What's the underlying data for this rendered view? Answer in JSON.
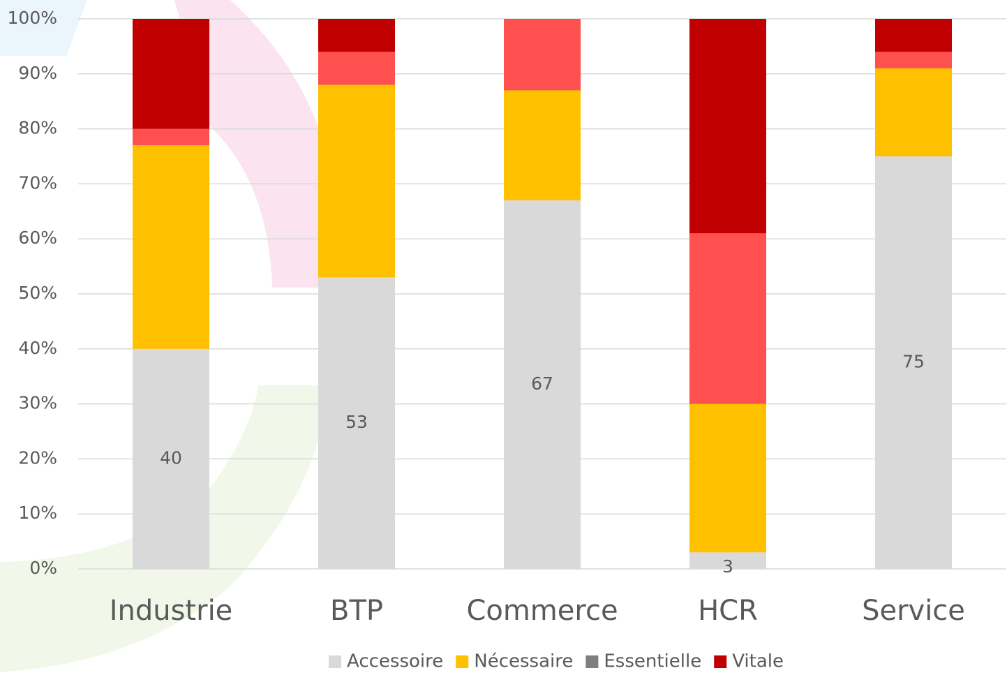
{
  "chart_data": {
    "type": "stacked_bar",
    "categories": [
      "Industrie",
      "BTP",
      "Commerce",
      "HCR",
      "Service"
    ],
    "series": [
      {
        "name": "Accessoire",
        "color": "#d9d9d9",
        "legend_color": "#d9d9d9",
        "values": [
          40,
          53,
          67,
          3,
          75
        ],
        "data_labels": true
      },
      {
        "name": "Nécessaire",
        "color": "#ffc000",
        "legend_color": "#ffc000",
        "values": [
          37,
          35,
          20,
          27,
          16
        ]
      },
      {
        "name": "Essentielle",
        "color": "#ff5050",
        "legend_color": "#7f7f7f",
        "values": [
          3,
          6,
          13,
          31,
          3
        ]
      },
      {
        "name": "Vitale",
        "color": "#c00000",
        "legend_color": "#c00000",
        "values": [
          20,
          6,
          0,
          39,
          6
        ]
      }
    ],
    "ylim": [
      0,
      100
    ],
    "yticks": [
      {
        "value": 0,
        "label": "0%"
      },
      {
        "value": 10,
        "label": "10%"
      },
      {
        "value": 20,
        "label": "20%"
      },
      {
        "value": 30,
        "label": "30%"
      },
      {
        "value": 40,
        "label": "40%"
      },
      {
        "value": 50,
        "label": "50%"
      },
      {
        "value": 60,
        "label": "60%"
      },
      {
        "value": 70,
        "label": "70%"
      },
      {
        "value": 80,
        "label": "80%"
      },
      {
        "value": 90,
        "label": "90%"
      },
      {
        "value": 100,
        "label": "100%"
      }
    ],
    "grid": true,
    "legend": "bottom"
  }
}
